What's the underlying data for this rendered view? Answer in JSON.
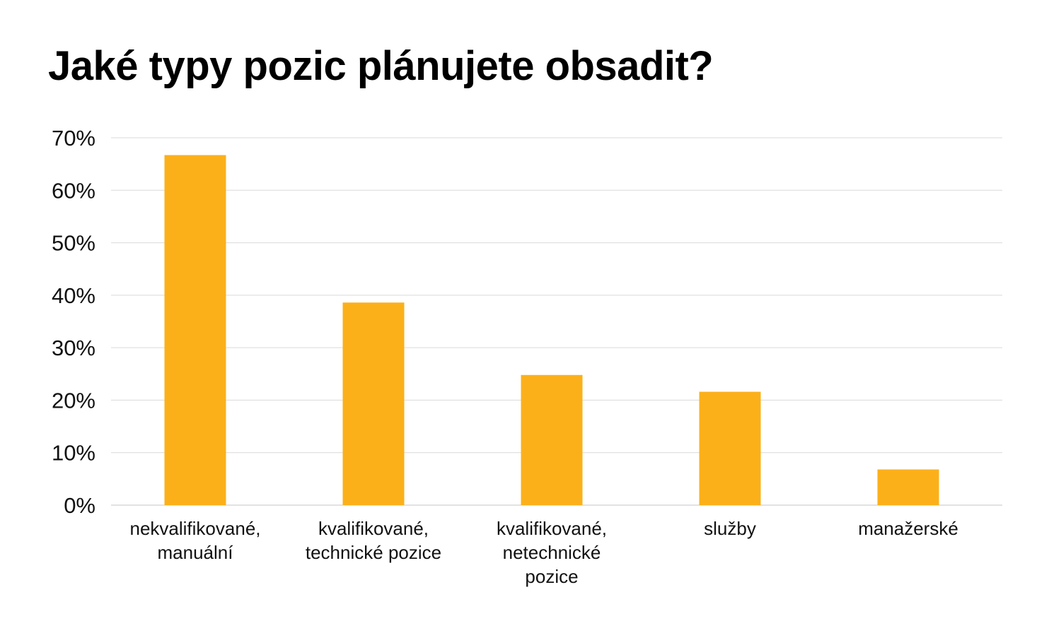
{
  "chart_data": {
    "type": "bar",
    "title": "Jaké typy pozic plánujete obsadit?",
    "xlabel": "",
    "ylabel": "",
    "categories": [
      [
        "nekvalifikované,",
        "manuální"
      ],
      [
        "kvalifikované,",
        "technické pozice"
      ],
      [
        "kvalifikované,",
        "netechnické",
        "pozice"
      ],
      [
        "služby"
      ],
      [
        "manažerské"
      ]
    ],
    "values": [
      66.7,
      38.6,
      24.8,
      21.6,
      6.8
    ],
    "ylim": [
      0,
      70
    ],
    "yticks": [
      "0%",
      "10%",
      "20%",
      "30%",
      "40%",
      "50%",
      "60%",
      "70%"
    ],
    "grid": true,
    "legend": "none",
    "colors": {
      "bar": "#FBB01A",
      "grid": "#D9D9D9",
      "text": "#111111"
    }
  }
}
